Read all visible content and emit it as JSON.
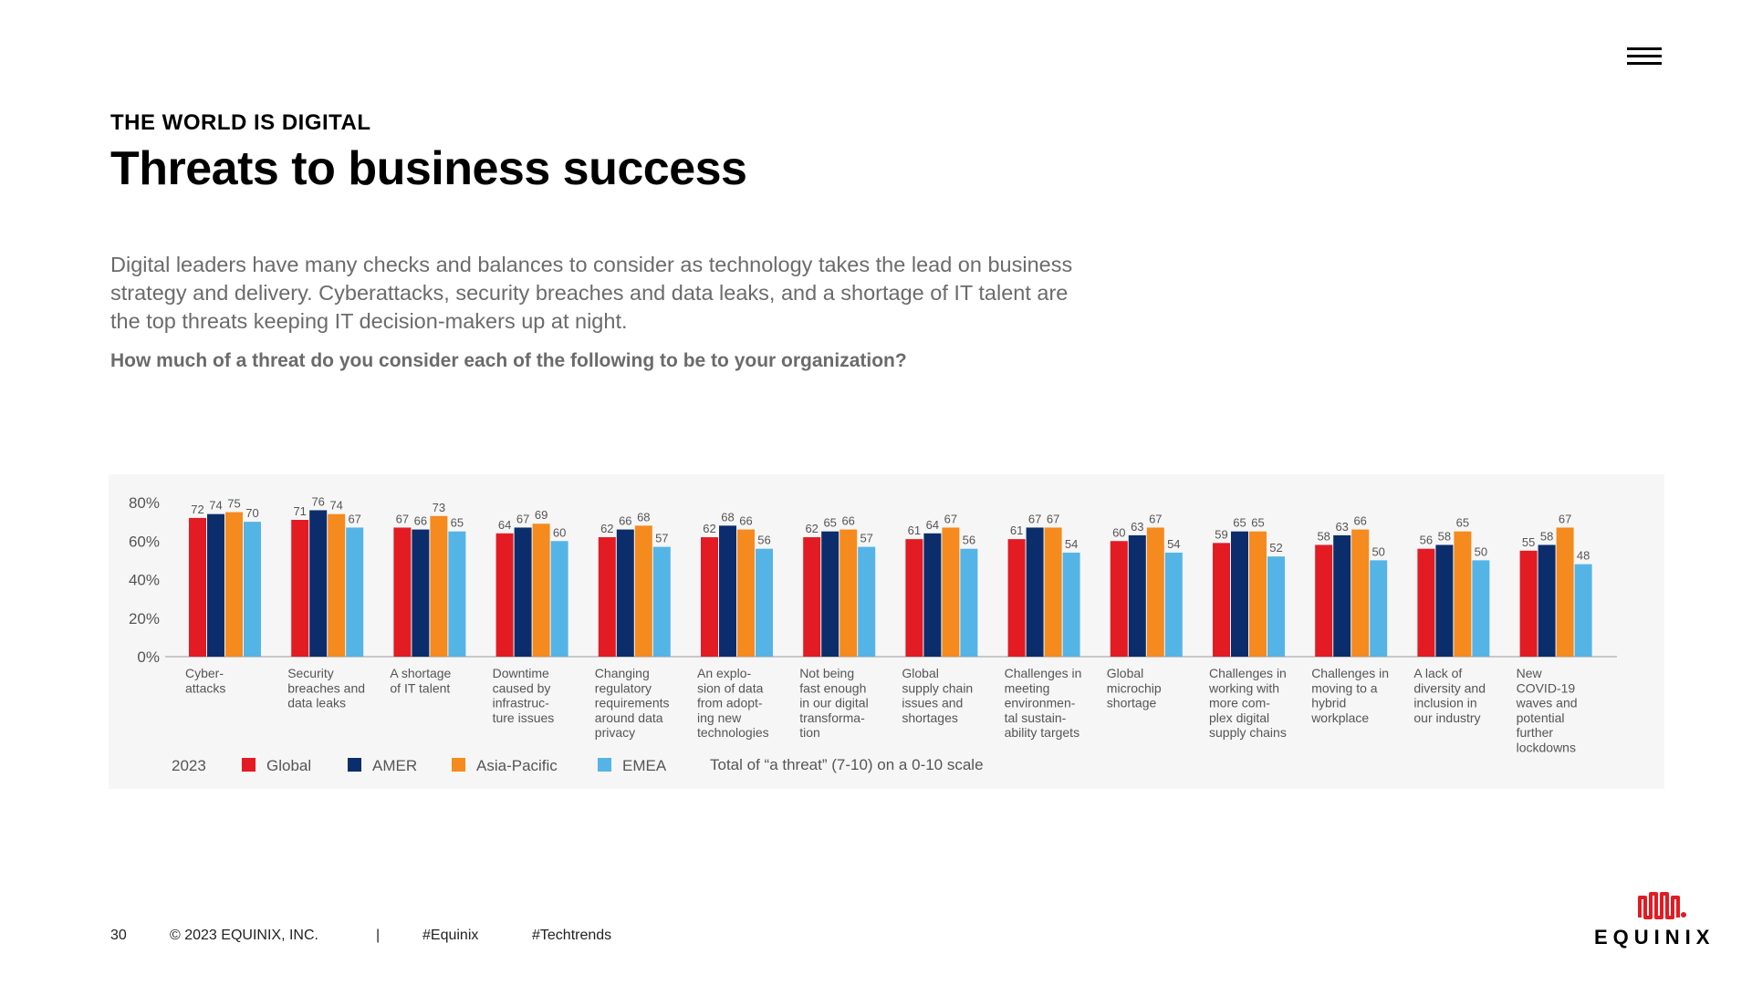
{
  "header": {
    "eyebrow": "THE WORLD IS DIGITAL",
    "title": "Threats to business success"
  },
  "intro": "Digital leaders have many checks and balances to consider as technology takes the lead on business strategy and delivery. Cyberattacks, security breaches and data leaks, and a shortage of IT talent are the top threats keeping IT decision-makers up at night.",
  "question": "How much of a threat do you consider each of the following to be to your organization?",
  "footer": {
    "page_number": "30",
    "copyright": "© 2023 EQUINIX, INC.",
    "separator": "|",
    "hashtag1": "#Equinix",
    "hashtag2": "#Techtrends"
  },
  "logo": {
    "text": "EQUINIX",
    "color": "#e31b23"
  },
  "menu": {
    "icon": "hamburger-menu-icon"
  },
  "chart_data": {
    "type": "bar",
    "year": "2023",
    "note": "Total of “a threat” (7-10) on a 0-10 scale",
    "ylim": [
      0,
      80
    ],
    "yticks": [
      "0%",
      "20%",
      "40%",
      "60%",
      "80%"
    ],
    "grid": false,
    "legend_position": "bottom",
    "categories": [
      [
        "Cyber-",
        "attacks"
      ],
      [
        "Security",
        "breaches and",
        "data leaks"
      ],
      [
        "A shortage",
        "of IT talent"
      ],
      [
        "Downtime",
        "caused by",
        "infrastruc-",
        "ture issues"
      ],
      [
        "Changing",
        "regulatory",
        "requirements",
        "around data",
        "privacy"
      ],
      [
        "An explo-",
        "sion of data",
        "from adopt-",
        "ing new",
        "technologies"
      ],
      [
        "Not being",
        "fast enough",
        "in our digital",
        "transforma-",
        "tion"
      ],
      [
        "Global",
        "supply chain",
        "issues and",
        "shortages"
      ],
      [
        "Challenges in",
        "meeting",
        "environmen-",
        "tal sustain-",
        "ability targets"
      ],
      [
        "Global",
        "microchip",
        "shortage"
      ],
      [
        "Challenges in",
        "working with",
        "more com-",
        "plex digital",
        "supply chains"
      ],
      [
        "Challenges in",
        "moving to a",
        "hybrid",
        "workplace"
      ],
      [
        "A lack of",
        "diversity and",
        "inclusion in",
        "our industry"
      ],
      [
        "New",
        "COVID-19",
        "waves and",
        "potential",
        "further",
        "lockdowns"
      ]
    ],
    "series": [
      {
        "name": "Global",
        "color": "#e31b23",
        "values": [
          72,
          71,
          67,
          64,
          62,
          62,
          62,
          61,
          61,
          60,
          59,
          58,
          56,
          55
        ]
      },
      {
        "name": "AMER",
        "color": "#0b2d6b",
        "values": [
          74,
          76,
          66,
          67,
          66,
          68,
          65,
          64,
          67,
          63,
          65,
          63,
          58,
          58
        ]
      },
      {
        "name": "Asia-Pacific",
        "color": "#f58a1f",
        "values": [
          75,
          74,
          73,
          69,
          68,
          66,
          66,
          67,
          67,
          67,
          65,
          66,
          65,
          67
        ]
      },
      {
        "name": "EMEA",
        "color": "#55b4e6",
        "values": [
          70,
          67,
          65,
          60,
          57,
          56,
          57,
          56,
          54,
          54,
          52,
          50,
          50,
          48
        ]
      }
    ]
  }
}
